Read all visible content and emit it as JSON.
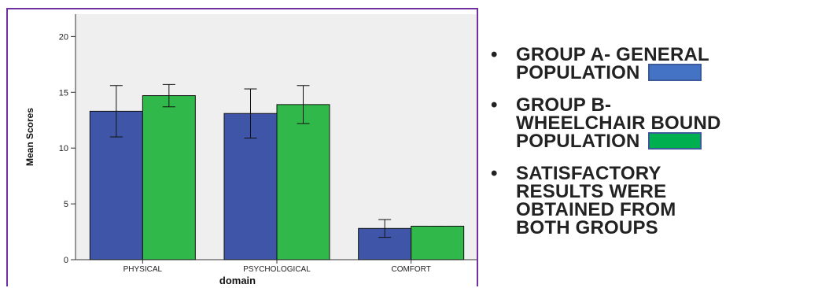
{
  "chart_data": {
    "type": "bar",
    "categories": [
      "PHYSICAL",
      "PSYCHOLOGICAL",
      "COMFORT"
    ],
    "series": [
      {
        "values": [
          13.3,
          13.1,
          2.8
        ],
        "error_low": [
          11.0,
          10.9,
          2.0
        ],
        "error_high": [
          15.6,
          15.3,
          3.6
        ],
        "color": "#3f56a8"
      },
      {
        "values": [
          14.7,
          13.9,
          3.0
        ],
        "error_low": [
          13.7,
          12.2,
          3.0
        ],
        "error_high": [
          15.7,
          15.6,
          3.0
        ],
        "color": "#30b84a"
      }
    ],
    "xlabel": "domain",
    "ylabel": "Mean Scores",
    "ylim": [
      0,
      22
    ],
    "yticks": [
      0,
      5,
      10,
      15,
      20
    ],
    "plot_background": "#efefef",
    "grid": false
  },
  "legend": {
    "items": [
      {
        "bullet": "•",
        "lines": [
          "GROUP A- GENERAL",
          "POPULATION"
        ],
        "swatch_color": "#4472c4"
      },
      {
        "bullet": "•",
        "lines": [
          "GROUP B-",
          "WHEELCHAIR BOUND",
          "POPULATION"
        ],
        "swatch_color": "#00b050"
      },
      {
        "bullet": "•",
        "lines": [
          "SATISFACTORY",
          "RESULTS WERE",
          "OBTAINED FROM",
          "BOTH GROUPS"
        ]
      }
    ]
  }
}
